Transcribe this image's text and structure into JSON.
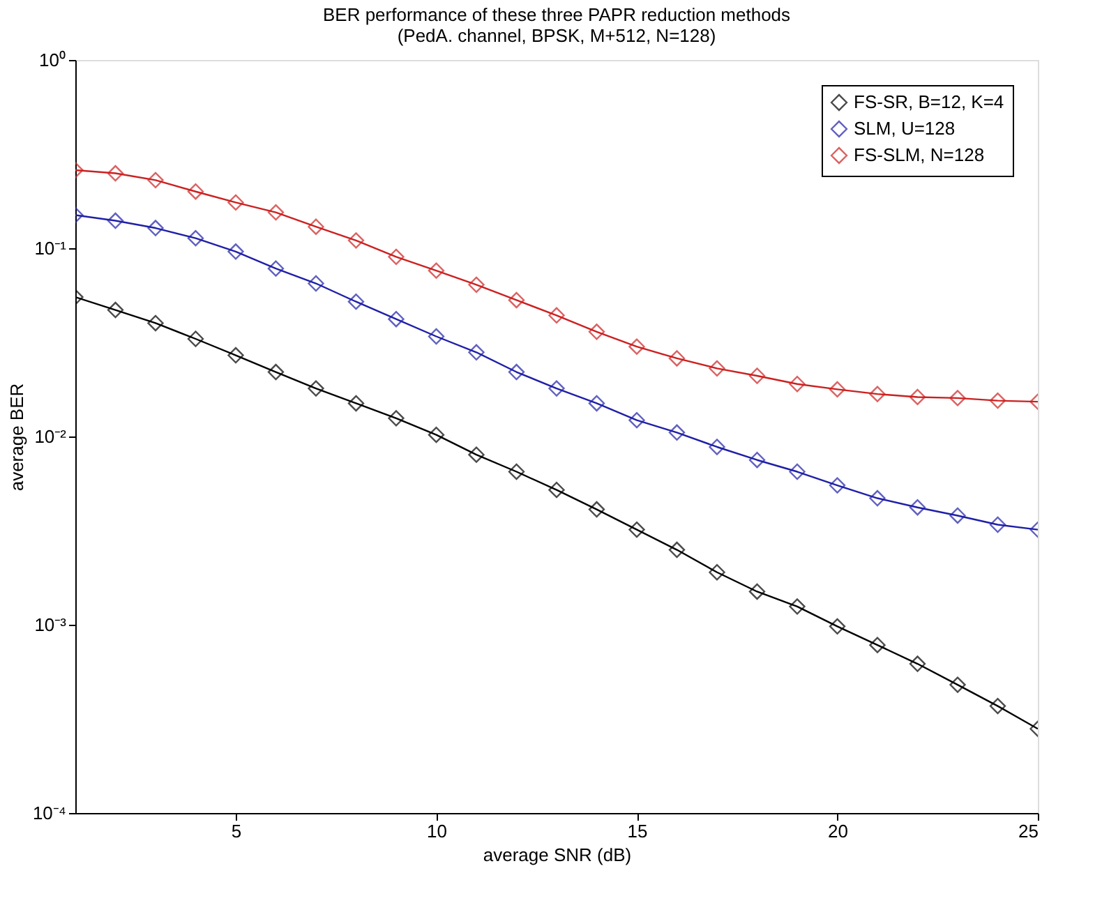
{
  "chart_data": {
    "type": "line",
    "title": "BER performance of these three PAPR reduction methods",
    "subtitle": "(PedA. channel, BPSK, M+512, N=128)",
    "xlabel": "average SNR (dB)",
    "ylabel": "average BER",
    "x": [
      1,
      2,
      3,
      4,
      5,
      6,
      7,
      8,
      9,
      10,
      11,
      12,
      13,
      14,
      15,
      16,
      17,
      18,
      19,
      20,
      21,
      22,
      23,
      24,
      25
    ],
    "series": [
      {
        "name": "FS-SR, B=12, K=4",
        "color": "#000000",
        "values": [
          0.055,
          0.047,
          0.04,
          0.033,
          0.027,
          0.022,
          0.018,
          0.015,
          0.0125,
          0.0102,
          0.008,
          0.0065,
          0.0052,
          0.0041,
          0.0032,
          0.0025,
          0.0019,
          0.0015,
          0.00125,
          0.00098,
          0.00078,
          0.00062,
          0.00048,
          0.00037,
          0.00028
        ]
      },
      {
        "name": "SLM, U=128",
        "color": "#1f1fa8",
        "values": [
          0.15,
          0.14,
          0.128,
          0.113,
          0.096,
          0.078,
          0.065,
          0.052,
          0.042,
          0.034,
          0.028,
          0.022,
          0.018,
          0.015,
          0.0122,
          0.0105,
          0.0088,
          0.0075,
          0.0065,
          0.0055,
          0.0047,
          0.0042,
          0.0038,
          0.0034,
          0.0032
        ]
      },
      {
        "name": "FS-SLM, N=128",
        "color": "#cc2020",
        "values": [
          0.26,
          0.25,
          0.23,
          0.2,
          0.175,
          0.155,
          0.13,
          0.11,
          0.09,
          0.076,
          0.064,
          0.053,
          0.044,
          0.036,
          0.03,
          0.026,
          0.023,
          0.021,
          0.019,
          0.0178,
          0.0168,
          0.0162,
          0.016,
          0.0155,
          0.0153
        ]
      }
    ],
    "log": "y",
    "xlim": [
      1,
      25
    ],
    "xticks": [
      5,
      10,
      15,
      20,
      25
    ],
    "ylim": [
      0.0001,
      1
    ],
    "yticks": [
      {
        "value": 0.0001,
        "label": "10⁻⁴"
      },
      {
        "value": 0.001,
        "label": "10⁻³"
      },
      {
        "value": 0.01,
        "label": "10⁻²"
      },
      {
        "value": 0.1,
        "label": "10⁻¹"
      },
      {
        "value": 1,
        "label": "10⁰"
      }
    ],
    "grid": false,
    "legend": "top right",
    "marker": "diamond",
    "line_style": "solid"
  }
}
